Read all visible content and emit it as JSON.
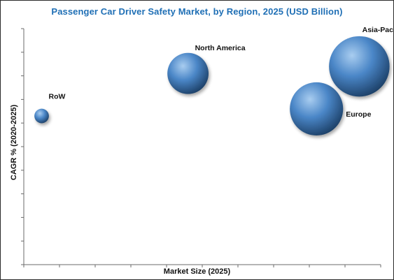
{
  "chart_data": {
    "type": "bubble",
    "title": "Passenger Car Driver Safety Market, by Region, 2025 (USD Billion)",
    "xlabel": "Market Size (2025)",
    "ylabel": "CAGR % (2020-2025)",
    "x_ticks": 10,
    "y_ticks": 10,
    "grid": false,
    "legend": false,
    "axis_color": "#6b6b6b",
    "title_color": "#1f6fb5",
    "bubble_color_light": "#a9cdf0",
    "bubble_color_mid": "#4a86c7",
    "bubble_color_dark": "#1c3f66",
    "xlim": [
      0,
      10
    ],
    "ylim": [
      0,
      10
    ],
    "series": [
      {
        "label": "RoW",
        "x": 0.5,
        "y": 6.3,
        "size": 0.6
      },
      {
        "label": "North America",
        "x": 4.6,
        "y": 8.1,
        "size": 1.7
      },
      {
        "label": "Europe",
        "x": 8.2,
        "y": 6.6,
        "size": 2.2
      },
      {
        "label": "Asia-Pacific",
        "x": 9.4,
        "y": 8.4,
        "size": 2.5
      }
    ]
  }
}
